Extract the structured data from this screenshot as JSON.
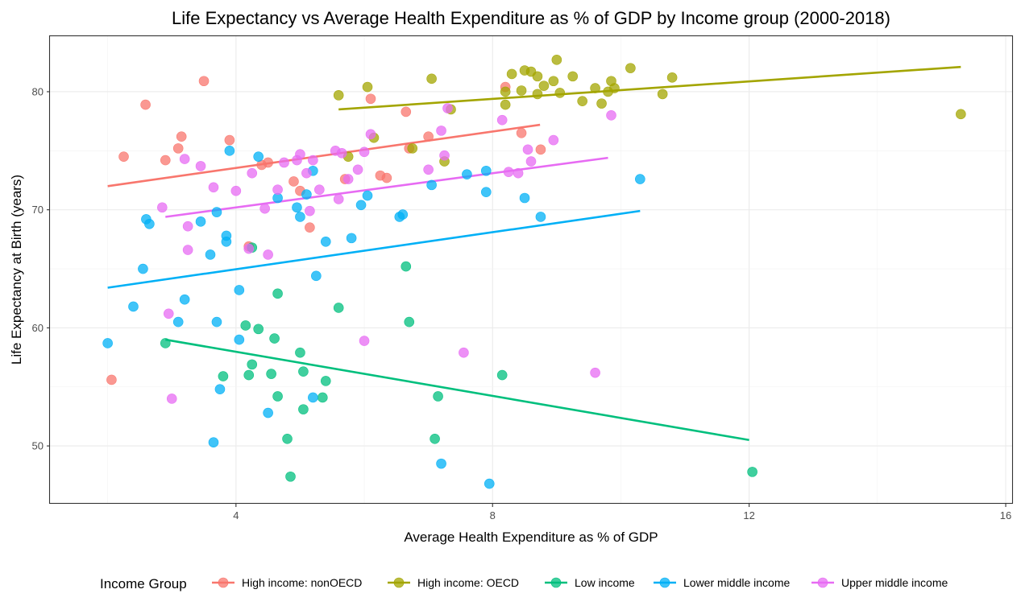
{
  "chart_data": {
    "type": "scatter",
    "title": "Life Expectancy vs Average Health Expenditure as % of GDP by Income group (2000-2018)",
    "xlabel": "Average Health Expenditure as % of GDP",
    "ylabel": "Life Expectancy at Birth (years)",
    "xlim": [
      1.1,
      16.1
    ],
    "ylim": [
      45.1,
      84.7
    ],
    "xticks": [
      4,
      8,
      12,
      16
    ],
    "yticks": [
      50,
      60,
      70,
      80
    ],
    "grid": true,
    "legend": {
      "title": "Income Group",
      "position": "bottom"
    },
    "series": [
      {
        "name": "High income: nonOECD",
        "color": "#F8766D",
        "trend": [
          [
            2.0,
            72.0
          ],
          [
            8.74,
            77.2
          ]
        ],
        "points": [
          [
            2.06,
            55.6
          ],
          [
            2.25,
            74.5
          ],
          [
            2.59,
            78.9
          ],
          [
            2.9,
            74.2
          ],
          [
            3.1,
            75.2
          ],
          [
            3.15,
            76.2
          ],
          [
            3.5,
            80.9
          ],
          [
            3.9,
            75.9
          ],
          [
            4.2,
            66.9
          ],
          [
            4.4,
            73.8
          ],
          [
            4.5,
            74.0
          ],
          [
            4.9,
            72.4
          ],
          [
            5.0,
            71.6
          ],
          [
            5.15,
            68.5
          ],
          [
            5.7,
            72.6
          ],
          [
            6.1,
            79.4
          ],
          [
            6.25,
            72.9
          ],
          [
            6.35,
            72.7
          ],
          [
            6.65,
            78.3
          ],
          [
            6.7,
            75.2
          ],
          [
            7.0,
            76.2
          ],
          [
            8.2,
            80.4
          ],
          [
            8.45,
            76.5
          ],
          [
            8.75,
            75.1
          ]
        ]
      },
      {
        "name": "High income: OECD",
        "color": "#A3A500",
        "trend": [
          [
            5.6,
            78.5
          ],
          [
            15.3,
            82.1
          ]
        ],
        "points": [
          [
            5.6,
            79.7
          ],
          [
            5.75,
            74.5
          ],
          [
            6.05,
            80.4
          ],
          [
            6.15,
            76.1
          ],
          [
            6.75,
            75.2
          ],
          [
            7.05,
            81.1
          ],
          [
            7.25,
            74.1
          ],
          [
            7.35,
            78.5
          ],
          [
            8.2,
            80.0
          ],
          [
            8.2,
            78.9
          ],
          [
            8.3,
            81.5
          ],
          [
            8.45,
            80.1
          ],
          [
            8.5,
            81.8
          ],
          [
            8.6,
            81.7
          ],
          [
            8.7,
            81.3
          ],
          [
            8.7,
            79.8
          ],
          [
            8.8,
            80.5
          ],
          [
            8.95,
            80.9
          ],
          [
            9.0,
            82.7
          ],
          [
            9.05,
            79.9
          ],
          [
            9.25,
            81.3
          ],
          [
            9.4,
            79.2
          ],
          [
            9.6,
            80.3
          ],
          [
            9.7,
            79.0
          ],
          [
            9.8,
            80.0
          ],
          [
            9.85,
            80.9
          ],
          [
            9.9,
            80.3
          ],
          [
            10.15,
            82.0
          ],
          [
            10.65,
            79.8
          ],
          [
            10.8,
            81.2
          ],
          [
            15.3,
            78.1
          ]
        ]
      },
      {
        "name": "Low income",
        "color": "#00BF7D",
        "trend": [
          [
            2.9,
            59.0
          ],
          [
            12.0,
            50.5
          ]
        ],
        "points": [
          [
            2.9,
            58.7
          ],
          [
            3.8,
            55.9
          ],
          [
            4.15,
            60.2
          ],
          [
            4.2,
            56.0
          ],
          [
            4.25,
            56.9
          ],
          [
            4.25,
            66.8
          ],
          [
            4.35,
            59.9
          ],
          [
            4.55,
            56.1
          ],
          [
            4.6,
            59.1
          ],
          [
            4.65,
            54.2
          ],
          [
            4.65,
            62.9
          ],
          [
            4.8,
            50.6
          ],
          [
            4.85,
            47.4
          ],
          [
            5.0,
            57.9
          ],
          [
            5.05,
            53.1
          ],
          [
            5.05,
            56.3
          ],
          [
            5.35,
            54.1
          ],
          [
            5.4,
            55.5
          ],
          [
            5.6,
            61.7
          ],
          [
            6.65,
            65.2
          ],
          [
            6.7,
            60.5
          ],
          [
            7.1,
            50.6
          ],
          [
            7.15,
            54.2
          ],
          [
            8.15,
            56.0
          ],
          [
            12.05,
            47.8
          ]
        ]
      },
      {
        "name": "Lower middle income",
        "color": "#00B0F6",
        "trend": [
          [
            2.0,
            63.4
          ],
          [
            10.3,
            69.9
          ]
        ],
        "points": [
          [
            2.0,
            58.7
          ],
          [
            2.4,
            61.8
          ],
          [
            2.55,
            65.0
          ],
          [
            2.6,
            69.2
          ],
          [
            2.65,
            68.8
          ],
          [
            3.1,
            60.5
          ],
          [
            3.2,
            62.4
          ],
          [
            3.45,
            69.0
          ],
          [
            3.6,
            66.2
          ],
          [
            3.65,
            50.3
          ],
          [
            3.7,
            60.5
          ],
          [
            3.7,
            69.8
          ],
          [
            3.75,
            54.8
          ],
          [
            3.85,
            67.3
          ],
          [
            3.85,
            67.8
          ],
          [
            3.9,
            75.0
          ],
          [
            4.05,
            63.2
          ],
          [
            4.05,
            59.0
          ],
          [
            4.35,
            74.5
          ],
          [
            4.5,
            52.8
          ],
          [
            4.65,
            71.0
          ],
          [
            4.95,
            70.2
          ],
          [
            5.0,
            69.4
          ],
          [
            5.1,
            71.3
          ],
          [
            5.2,
            73.3
          ],
          [
            5.2,
            54.1
          ],
          [
            5.25,
            64.4
          ],
          [
            5.4,
            67.3
          ],
          [
            5.8,
            67.6
          ],
          [
            5.95,
            70.4
          ],
          [
            6.05,
            71.2
          ],
          [
            6.55,
            69.4
          ],
          [
            6.6,
            69.6
          ],
          [
            7.05,
            72.1
          ],
          [
            7.2,
            48.5
          ],
          [
            7.6,
            73.0
          ],
          [
            7.9,
            71.5
          ],
          [
            7.9,
            73.3
          ],
          [
            7.95,
            46.8
          ],
          [
            8.5,
            71.0
          ],
          [
            8.75,
            69.4
          ],
          [
            10.3,
            72.6
          ]
        ]
      },
      {
        "name": "Upper middle income",
        "color": "#E76BF3",
        "trend": [
          [
            2.9,
            69.4
          ],
          [
            9.8,
            74.4
          ]
        ],
        "points": [
          [
            2.85,
            70.2
          ],
          [
            2.95,
            61.2
          ],
          [
            3.0,
            54.0
          ],
          [
            3.2,
            74.3
          ],
          [
            3.25,
            66.6
          ],
          [
            3.25,
            68.6
          ],
          [
            3.45,
            73.7
          ],
          [
            3.65,
            71.9
          ],
          [
            4.0,
            71.6
          ],
          [
            4.2,
            66.7
          ],
          [
            4.25,
            73.1
          ],
          [
            4.45,
            70.1
          ],
          [
            4.5,
            66.2
          ],
          [
            4.65,
            71.7
          ],
          [
            4.75,
            74.0
          ],
          [
            4.95,
            74.2
          ],
          [
            5.0,
            74.7
          ],
          [
            5.1,
            73.1
          ],
          [
            5.15,
            69.9
          ],
          [
            5.2,
            74.2
          ],
          [
            5.3,
            71.7
          ],
          [
            5.55,
            75.0
          ],
          [
            5.6,
            70.9
          ],
          [
            5.65,
            74.8
          ],
          [
            5.75,
            72.6
          ],
          [
            5.9,
            73.4
          ],
          [
            6.0,
            74.9
          ],
          [
            6.0,
            58.9
          ],
          [
            6.1,
            76.4
          ],
          [
            7.0,
            73.4
          ],
          [
            7.2,
            76.7
          ],
          [
            7.25,
            74.6
          ],
          [
            7.3,
            78.6
          ],
          [
            7.55,
            57.9
          ],
          [
            8.15,
            77.6
          ],
          [
            8.25,
            73.2
          ],
          [
            8.4,
            73.1
          ],
          [
            8.55,
            75.1
          ],
          [
            8.6,
            74.1
          ],
          [
            8.95,
            75.9
          ],
          [
            9.6,
            56.2
          ],
          [
            9.85,
            78.0
          ]
        ]
      }
    ]
  }
}
